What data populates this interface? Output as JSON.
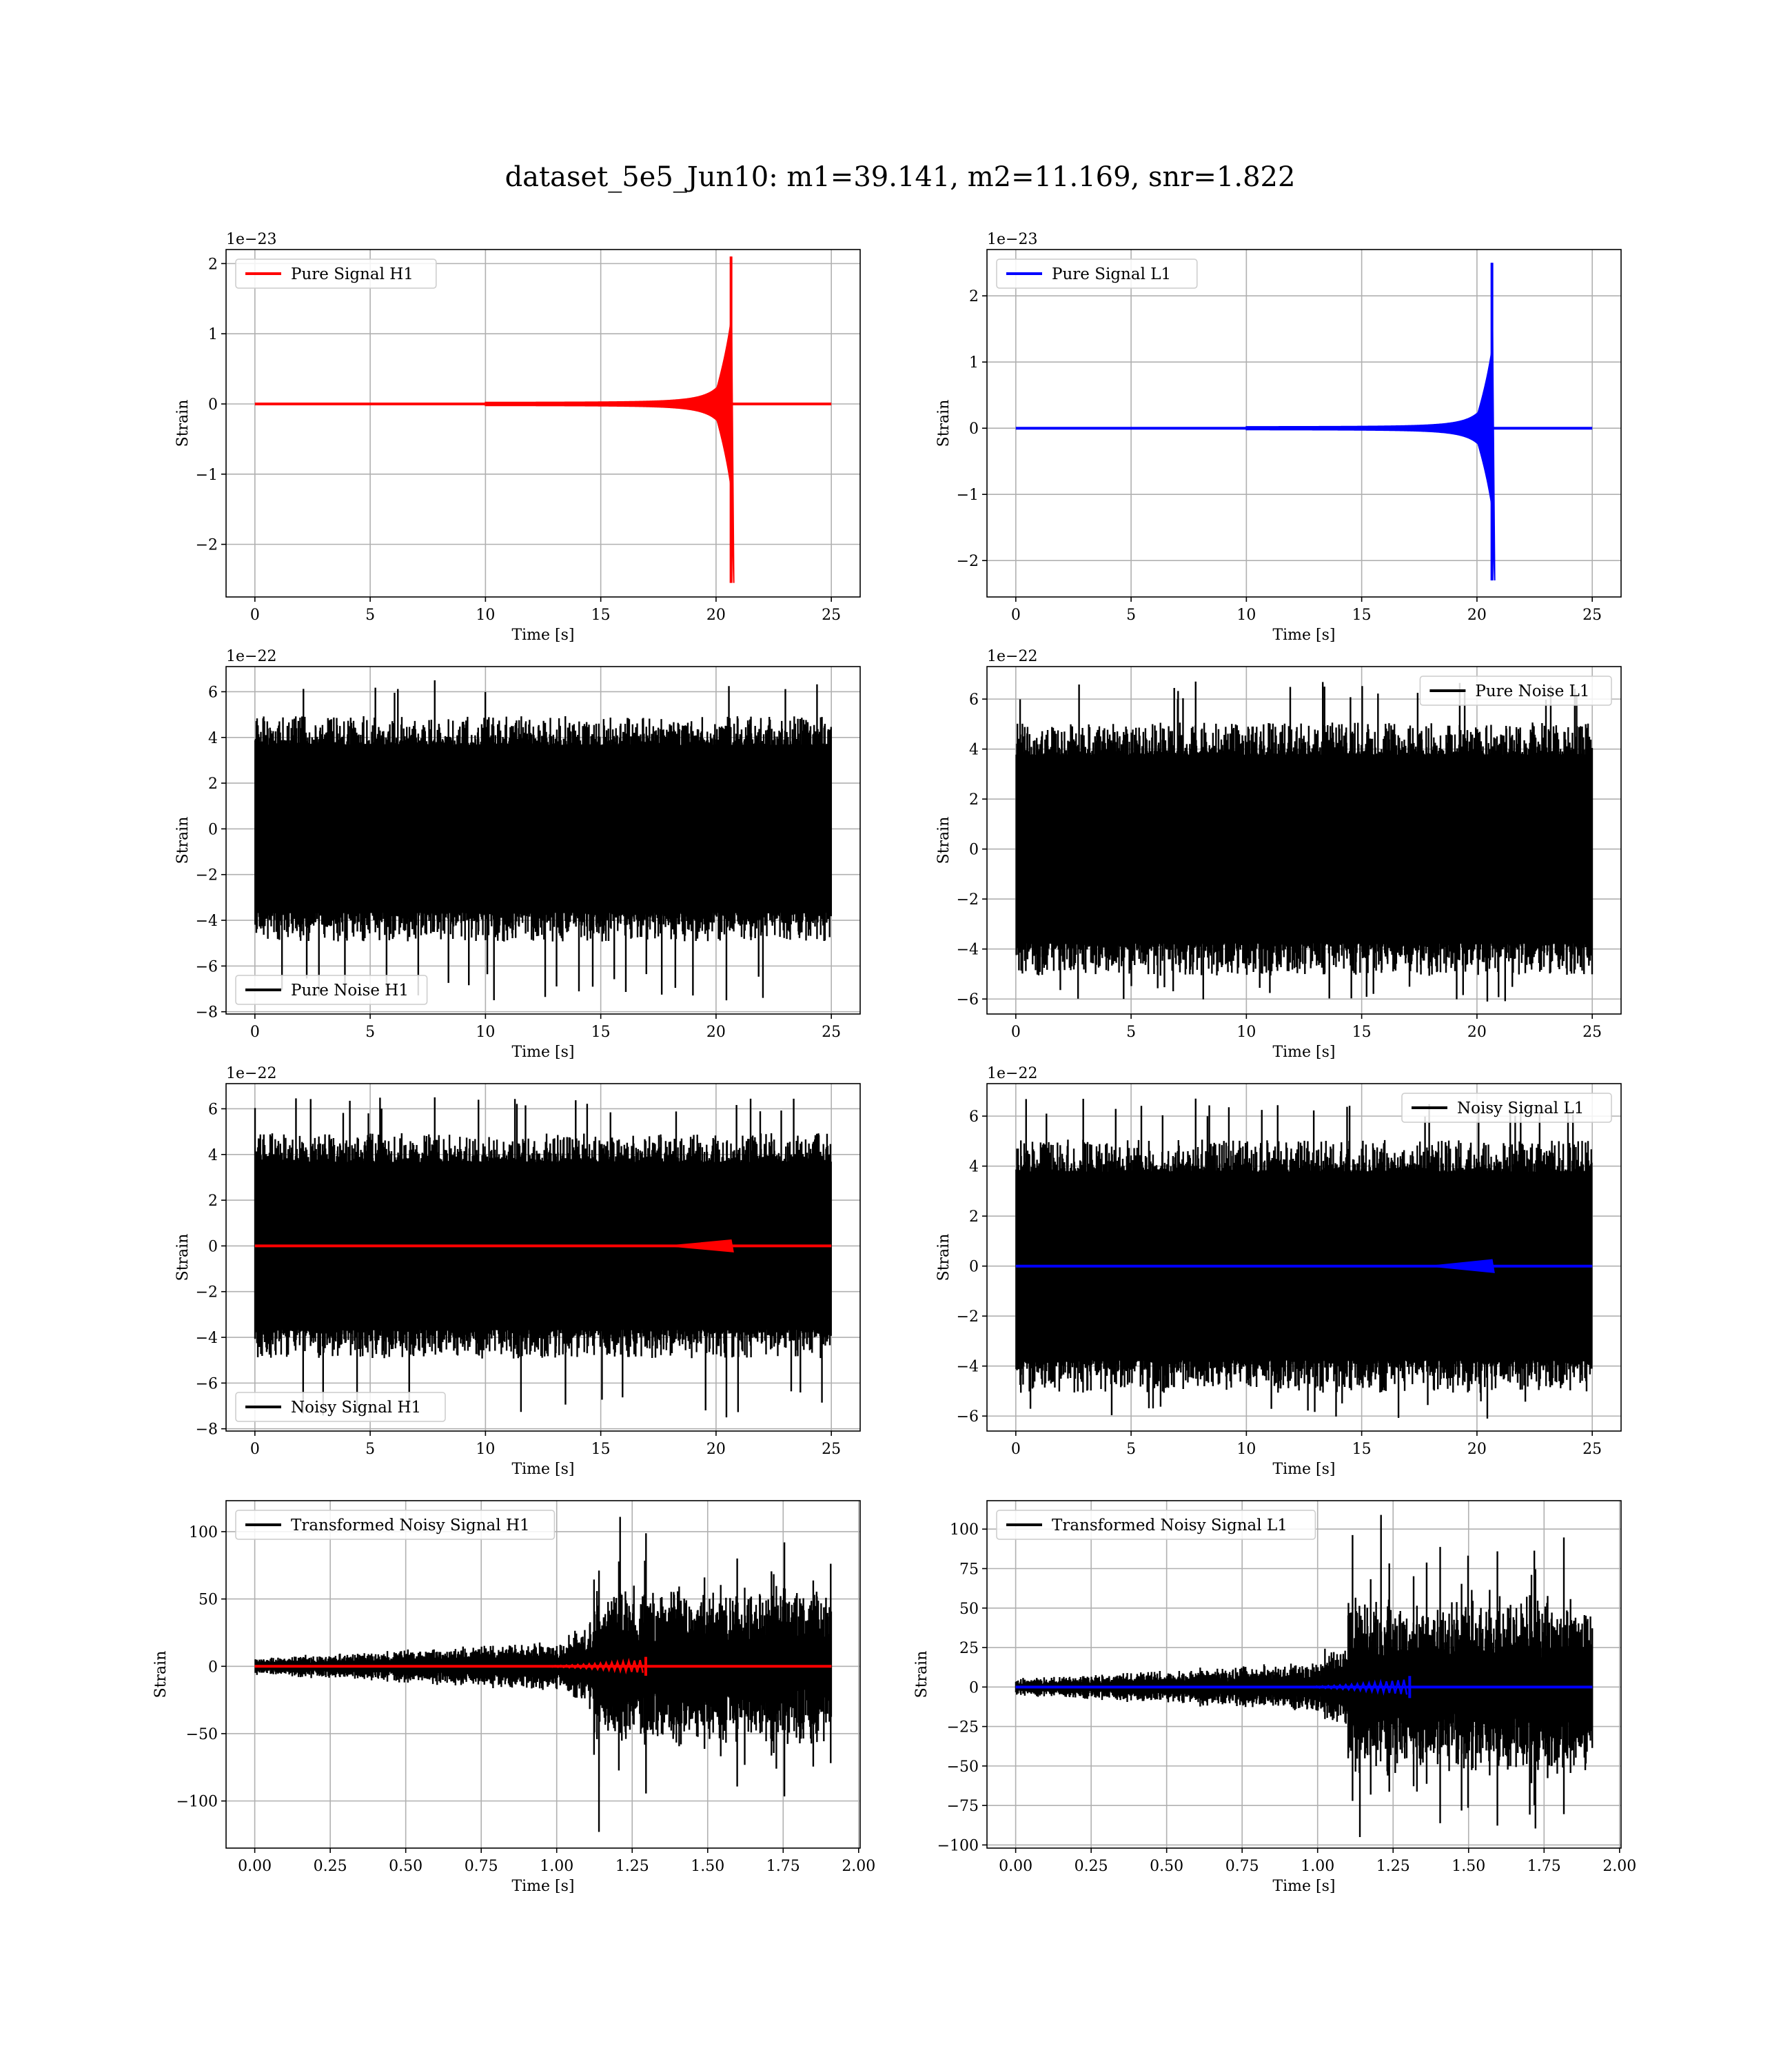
{
  "figure": {
    "title": "dataset_5e5_Jun10: m1=39.141, m2=11.169, snr=1.822"
  },
  "chart_data": [
    {
      "type": "line",
      "legend": "Pure Signal H1",
      "legend_loc": "upper-left",
      "color": "#ff0000",
      "kind": "chirp",
      "merger_time": 20.65,
      "peak_pos": 2.1,
      "peak_neg": -2.55,
      "xlabel": "Time [s]",
      "ylabel": "Strain",
      "xlim": [
        -1.25,
        26.25
      ],
      "ylim": [
        -2.75,
        2.2
      ],
      "xticks": [
        0,
        5,
        10,
        15,
        20,
        25
      ],
      "xtick_labels": [
        "0",
        "5",
        "10",
        "15",
        "20",
        "25"
      ],
      "yticks": [
        2,
        1,
        0,
        -1,
        -2
      ],
      "ytick_labels": [
        "2",
        "1",
        "0",
        "−1",
        "−2"
      ],
      "offset_text": "1e−23",
      "grid": true
    },
    {
      "type": "line",
      "legend": "Pure Signal L1",
      "legend_loc": "upper-left",
      "color": "#0000ff",
      "kind": "chirp",
      "merger_time": 20.65,
      "peak_pos": 2.5,
      "peak_neg": -2.3,
      "xlabel": "Time [s]",
      "ylabel": "Strain",
      "xlim": [
        -1.25,
        26.25
      ],
      "ylim": [
        -2.55,
        2.7
      ],
      "xticks": [
        0,
        5,
        10,
        15,
        20,
        25
      ],
      "xtick_labels": [
        "0",
        "5",
        "10",
        "15",
        "20",
        "25"
      ],
      "yticks": [
        2,
        1,
        0,
        -1,
        -2
      ],
      "ytick_labels": [
        "2",
        "1",
        "0",
        "−1",
        "−2"
      ],
      "offset_text": "1e−23",
      "grid": true
    },
    {
      "type": "line",
      "legend": "Pure Noise H1",
      "legend_loc": "lower-left",
      "color": "#000000",
      "kind": "noise",
      "band": 3.6,
      "max": 6.5,
      "min": -7.5,
      "xlabel": "Time [s]",
      "ylabel": "Strain",
      "xlim": [
        -1.25,
        26.25
      ],
      "ylim": [
        -8.1,
        7.1
      ],
      "xticks": [
        0,
        5,
        10,
        15,
        20,
        25
      ],
      "xtick_labels": [
        "0",
        "5",
        "10",
        "15",
        "20",
        "25"
      ],
      "yticks": [
        6,
        4,
        2,
        0,
        -2,
        -4,
        -6,
        -8
      ],
      "ytick_labels": [
        "6",
        "4",
        "2",
        "0",
        "−2",
        "−4",
        "−6",
        "−8"
      ],
      "offset_text": "1e−22",
      "grid": true
    },
    {
      "type": "line",
      "legend": "Pure Noise L1",
      "legend_loc": "upper-right",
      "color": "#000000",
      "kind": "noise",
      "band": 3.7,
      "max": 6.7,
      "min": -6.1,
      "xlabel": "Time [s]",
      "ylabel": "Strain",
      "xlim": [
        -1.25,
        26.25
      ],
      "ylim": [
        -6.6,
        7.3
      ],
      "xticks": [
        0,
        5,
        10,
        15,
        20,
        25
      ],
      "xtick_labels": [
        "0",
        "5",
        "10",
        "15",
        "20",
        "25"
      ],
      "yticks": [
        6,
        4,
        2,
        0,
        -2,
        -4,
        -6
      ],
      "ytick_labels": [
        "6",
        "4",
        "2",
        "0",
        "−2",
        "−4",
        "−6"
      ],
      "offset_text": "1e−22",
      "grid": true
    },
    {
      "type": "line",
      "legend": "Noisy Signal H1",
      "legend_loc": "lower-left",
      "color": "#000000",
      "overlay_color": "#ff0000",
      "kind": "noise+chirp",
      "band": 3.6,
      "max": 6.5,
      "min": -7.5,
      "merger_time": 20.65,
      "chirp_amp": 0.25,
      "xlabel": "Time [s]",
      "ylabel": "Strain",
      "xlim": [
        -1.25,
        26.25
      ],
      "ylim": [
        -8.1,
        7.1
      ],
      "xticks": [
        0,
        5,
        10,
        15,
        20,
        25
      ],
      "xtick_labels": [
        "0",
        "5",
        "10",
        "15",
        "20",
        "25"
      ],
      "yticks": [
        6,
        4,
        2,
        0,
        -2,
        -4,
        -6,
        -8
      ],
      "ytick_labels": [
        "6",
        "4",
        "2",
        "0",
        "−2",
        "−4",
        "−6",
        "−8"
      ],
      "offset_text": "1e−22",
      "grid": true
    },
    {
      "type": "line",
      "legend": "Noisy Signal L1",
      "legend_loc": "upper-right",
      "color": "#000000",
      "overlay_color": "#0000ff",
      "kind": "noise+chirp",
      "band": 3.7,
      "max": 6.7,
      "min": -6.1,
      "merger_time": 20.65,
      "chirp_amp": 0.25,
      "xlabel": "Time [s]",
      "ylabel": "Strain",
      "xlim": [
        -1.25,
        26.25
      ],
      "ylim": [
        -6.6,
        7.3
      ],
      "xticks": [
        0,
        5,
        10,
        15,
        20,
        25
      ],
      "xtick_labels": [
        "0",
        "5",
        "10",
        "15",
        "20",
        "25"
      ],
      "yticks": [
        6,
        4,
        2,
        0,
        -2,
        -4,
        -6
      ],
      "ytick_labels": [
        "6",
        "4",
        "2",
        "0",
        "−2",
        "−4",
        "−6"
      ],
      "offset_text": "1e−22",
      "grid": true
    },
    {
      "type": "line",
      "legend": "Transformed Noisy Signal H1",
      "legend_loc": "upper-left",
      "color": "#000000",
      "overlay_color": "#ff0000",
      "kind": "transformed",
      "x_end": 1.91,
      "jump_time": 1.12,
      "low_band": 7,
      "high_band": 45,
      "max": 111,
      "min": -123,
      "merger_time": 1.295,
      "chirp_amp": 5,
      "xlabel": "Time [s]",
      "ylabel": "Strain",
      "xlim": [
        -0.095,
        2.005
      ],
      "ylim": [
        -135,
        123
      ],
      "xticks": [
        0,
        0.25,
        0.5,
        0.75,
        1.0,
        1.25,
        1.5,
        1.75,
        2.0
      ],
      "xtick_labels": [
        "0.00",
        "0.25",
        "0.50",
        "0.75",
        "1.00",
        "1.25",
        "1.50",
        "1.75",
        "2.00"
      ],
      "yticks": [
        100,
        50,
        0,
        -50,
        -100
      ],
      "ytick_labels": [
        "100",
        "50",
        "0",
        "−50",
        "−100"
      ],
      "offset_text": "",
      "grid": true
    },
    {
      "type": "line",
      "legend": "Transformed Noisy Signal L1",
      "legend_loc": "upper-left",
      "color": "#000000",
      "overlay_color": "#0000ff",
      "kind": "transformed",
      "x_end": 1.91,
      "jump_time": 1.1,
      "low_band": 6,
      "high_band": 42,
      "max": 109,
      "min": -95,
      "merger_time": 1.305,
      "chirp_amp": 5,
      "xlabel": "Time [s]",
      "ylabel": "Strain",
      "xlim": [
        -0.095,
        2.005
      ],
      "ylim": [
        -102,
        118
      ],
      "xticks": [
        0,
        0.25,
        0.5,
        0.75,
        1.0,
        1.25,
        1.5,
        1.75,
        2.0
      ],
      "xtick_labels": [
        "0.00",
        "0.25",
        "0.50",
        "0.75",
        "1.00",
        "1.25",
        "1.50",
        "1.75",
        "2.00"
      ],
      "yticks": [
        100,
        75,
        50,
        25,
        0,
        -25,
        -50,
        -75,
        -100
      ],
      "ytick_labels": [
        "100",
        "75",
        "50",
        "25",
        "0",
        "−25",
        "−50",
        "−75",
        "−100"
      ],
      "offset_text": "",
      "grid": true
    }
  ]
}
